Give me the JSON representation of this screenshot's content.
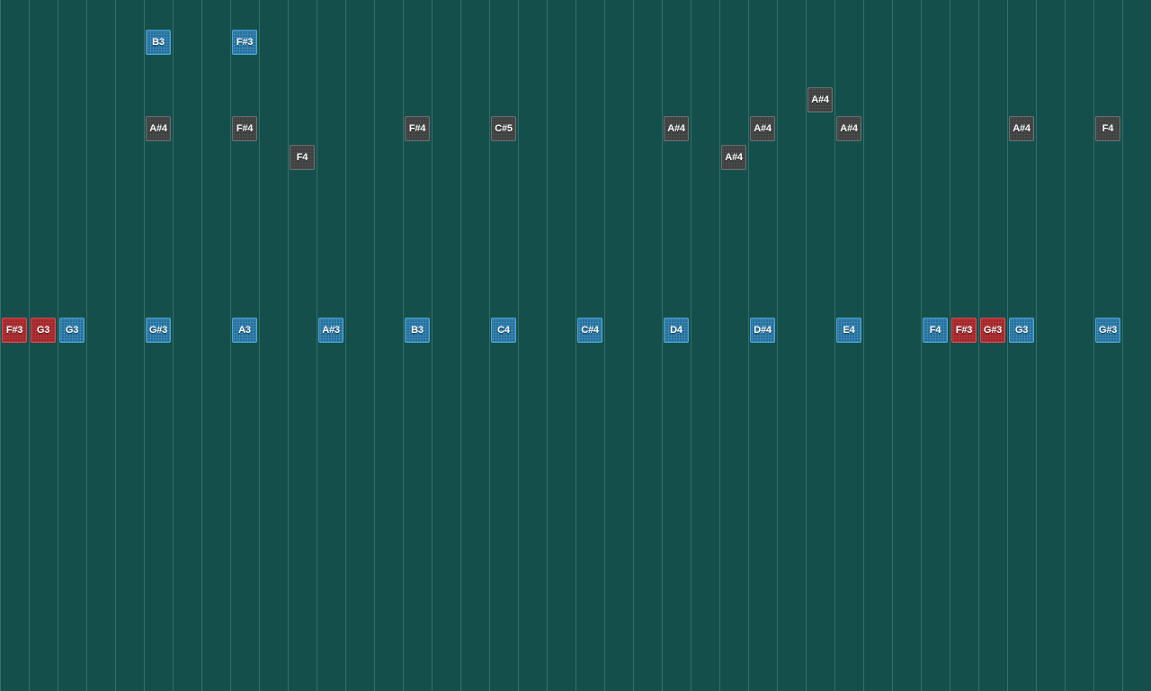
{
  "notes": [
    {
      "label": "B3",
      "col": 5,
      "row": 1,
      "color": "blue"
    },
    {
      "label": "F#3",
      "col": 8,
      "row": 1,
      "color": "blue"
    },
    {
      "label": "A#4",
      "col": 28,
      "row": 3,
      "color": "gray"
    },
    {
      "label": "A#4",
      "col": 5,
      "row": 4,
      "color": "gray"
    },
    {
      "label": "F#4",
      "col": 8,
      "row": 4,
      "color": "gray"
    },
    {
      "label": "F#4",
      "col": 14,
      "row": 4,
      "color": "gray"
    },
    {
      "label": "C#5",
      "col": 17,
      "row": 4,
      "color": "gray"
    },
    {
      "label": "A#4",
      "col": 23,
      "row": 4,
      "color": "gray"
    },
    {
      "label": "A#4",
      "col": 26,
      "row": 4,
      "color": "gray"
    },
    {
      "label": "A#4",
      "col": 29,
      "row": 4,
      "color": "gray"
    },
    {
      "label": "A#4",
      "col": 35,
      "row": 4,
      "color": "gray"
    },
    {
      "label": "F4",
      "col": 38,
      "row": 4,
      "color": "gray"
    },
    {
      "label": "F4",
      "col": 10,
      "row": 5,
      "color": "gray"
    },
    {
      "label": "A#4",
      "col": 25,
      "row": 5,
      "color": "gray"
    },
    {
      "label": "F#3",
      "col": 0,
      "row": 11,
      "color": "red"
    },
    {
      "label": "G3",
      "col": 1,
      "row": 11,
      "color": "red"
    },
    {
      "label": "G3",
      "col": 2,
      "row": 11,
      "color": "blue"
    },
    {
      "label": "G#3",
      "col": 5,
      "row": 11,
      "color": "blue"
    },
    {
      "label": "A3",
      "col": 8,
      "row": 11,
      "color": "blue"
    },
    {
      "label": "A#3",
      "col": 11,
      "row": 11,
      "color": "blue"
    },
    {
      "label": "B3",
      "col": 14,
      "row": 11,
      "color": "blue"
    },
    {
      "label": "C4",
      "col": 17,
      "row": 11,
      "color": "blue"
    },
    {
      "label": "C#4",
      "col": 20,
      "row": 11,
      "color": "blue"
    },
    {
      "label": "D4",
      "col": 23,
      "row": 11,
      "color": "blue"
    },
    {
      "label": "D#4",
      "col": 26,
      "row": 11,
      "color": "blue"
    },
    {
      "label": "E4",
      "col": 29,
      "row": 11,
      "color": "blue"
    },
    {
      "label": "F4",
      "col": 32,
      "row": 11,
      "color": "blue"
    },
    {
      "label": "F#3",
      "col": 33,
      "row": 11,
      "color": "red"
    },
    {
      "label": "G#3",
      "col": 34,
      "row": 11,
      "color": "red"
    },
    {
      "label": "G3",
      "col": 35,
      "row": 11,
      "color": "blue"
    },
    {
      "label": "G#3",
      "col": 38,
      "row": 11,
      "color": "blue"
    }
  ]
}
